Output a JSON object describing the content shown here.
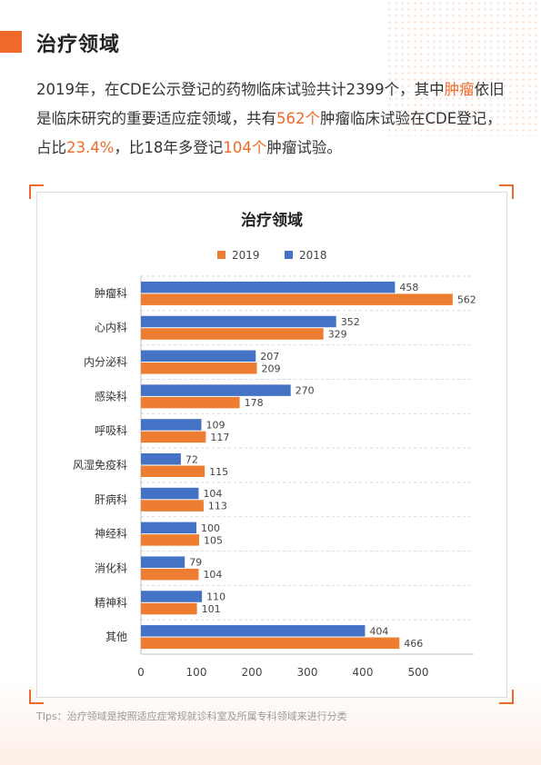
{
  "page": {
    "title": "治疗领域",
    "intro": {
      "p1": "2019年，在CDE公示登记的药物临床试验共计2399个，其中",
      "hl1": "肿瘤",
      "p2": "依旧是临床研究的重要适应症领域，共有",
      "hl2": "562个",
      "p3": "肿瘤临床试验在CDE登记，占比",
      "hl3": "23.4%",
      "p4": "，比18年多登记",
      "hl4": "104个",
      "p5": "肿瘤试验。"
    },
    "tips": "TIps：治疗领域是按照适应症常规就诊科室及所属专科领域来进行分类"
  },
  "colors": {
    "accent": "#ee6a2a",
    "bar2019": "#ed7d31",
    "bar2018": "#4472c4"
  },
  "chart_data": {
    "type": "bar",
    "orientation": "horizontal",
    "title": "治疗领域",
    "categories": [
      "肿瘤科",
      "心内科",
      "内分泌科",
      "感染科",
      "呼吸科",
      "风湿免疫科",
      "肝病科",
      "神经科",
      "消化科",
      "精神科",
      "其他"
    ],
    "series": [
      {
        "name": "2018",
        "color": "#4472c4",
        "values": [
          458,
          352,
          207,
          270,
          109,
          72,
          104,
          100,
          79,
          110,
          404
        ]
      },
      {
        "name": "2019",
        "color": "#ed7d31",
        "values": [
          562,
          329,
          209,
          178,
          117,
          115,
          113,
          105,
          104,
          101,
          466
        ]
      }
    ],
    "legend_order": [
      "2019",
      "2018"
    ],
    "legend_position": "top",
    "xlim": [
      0,
      600
    ],
    "xticks": [
      0,
      100,
      200,
      300,
      400,
      500
    ],
    "xticks_display": [
      "0",
      "100",
      "200",
      "300",
      "400",
      "500"
    ],
    "grid": "horizontal-dashed",
    "data_labels": true
  }
}
